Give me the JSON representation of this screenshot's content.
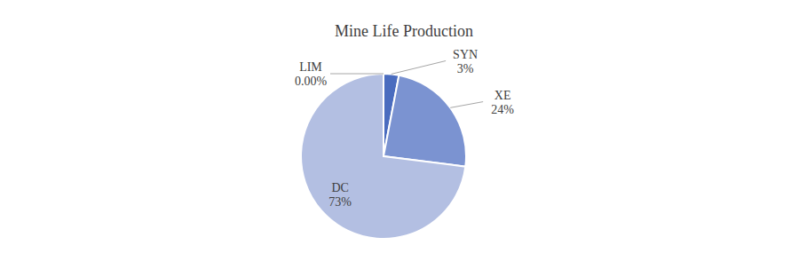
{
  "chart_data": {
    "type": "pie",
    "title": "Mine Life Production",
    "categories": [
      "LIM",
      "SYN",
      "XE",
      "DC"
    ],
    "values": [
      0,
      3,
      24,
      73
    ],
    "value_labels": [
      "0.00%",
      "3%",
      "24%",
      "73%"
    ],
    "colors": [
      "#2e4d9a",
      "#4a6cbf",
      "#7b93d1",
      "#b3bfe2"
    ],
    "data_labels": true
  }
}
